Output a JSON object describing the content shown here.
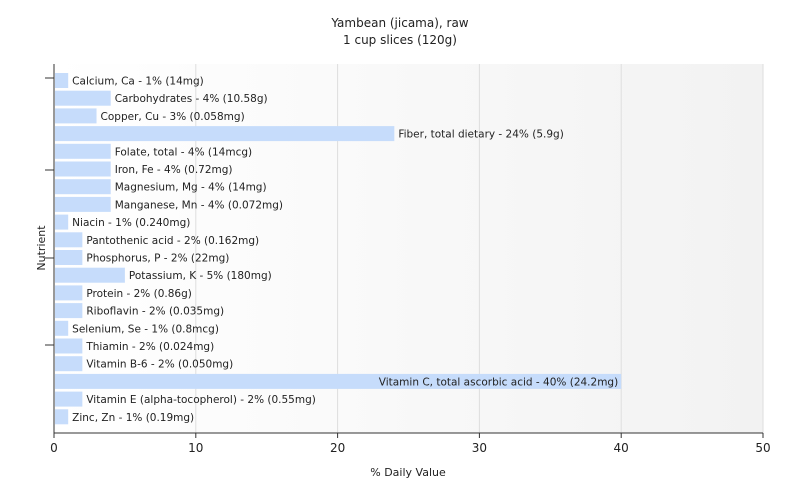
{
  "chart_data": {
    "type": "bar",
    "orientation": "horizontal",
    "title": "Yambean (jicama), raw",
    "subtitle": "1 cup slices (120g)",
    "xlabel": "% Daily Value",
    "ylabel": "Nutrient",
    "xlim": [
      0,
      50
    ],
    "xticks": [
      "0",
      "10",
      "20",
      "30",
      "40",
      "50"
    ],
    "grid": true,
    "bar_color": "#c6dcfb",
    "categories": [
      "Calcium, Ca",
      "Carbohydrates",
      "Copper, Cu",
      "Fiber, total dietary",
      "Folate, total",
      "Iron, Fe",
      "Magnesium, Mg",
      "Manganese, Mn",
      "Niacin",
      "Pantothenic acid",
      "Phosphorus, P",
      "Potassium, K",
      "Protein",
      "Riboflavin",
      "Selenium, Se",
      "Thiamin",
      "Vitamin B-6",
      "Vitamin C, total ascorbic acid",
      "Vitamin E (alpha-tocopherol)",
      "Zinc, Zn"
    ],
    "values": [
      1,
      4,
      3,
      24,
      4,
      4,
      4,
      4,
      1,
      2,
      2,
      5,
      2,
      2,
      1,
      2,
      2,
      40,
      2,
      1
    ],
    "labels": [
      "Calcium, Ca - 1% (14mg)",
      "Carbohydrates - 4% (10.58g)",
      "Copper, Cu - 3% (0.058mg)",
      "Fiber, total dietary - 24% (5.9g)",
      "Folate, total - 4% (14mcg)",
      "Iron, Fe - 4% (0.72mg)",
      "Magnesium, Mg - 4% (14mg)",
      "Manganese, Mn - 4% (0.072mg)",
      "Niacin - 1% (0.240mg)",
      "Pantothenic acid - 2% (0.162mg)",
      "Phosphorus, P - 2% (22mg)",
      "Potassium, K - 5% (180mg)",
      "Protein - 2% (0.86g)",
      "Riboflavin - 2% (0.035mg)",
      "Selenium, Se - 1% (0.8mcg)",
      "Thiamin - 2% (0.024mg)",
      "Vitamin B-6 - 2% (0.050mg)",
      "Vitamin C, total ascorbic acid - 40% (24.2mg)",
      "Vitamin E (alpha-tocopherol) - 2% (0.55mg)",
      "Zinc, Zn - 1% (0.19mg)"
    ]
  }
}
